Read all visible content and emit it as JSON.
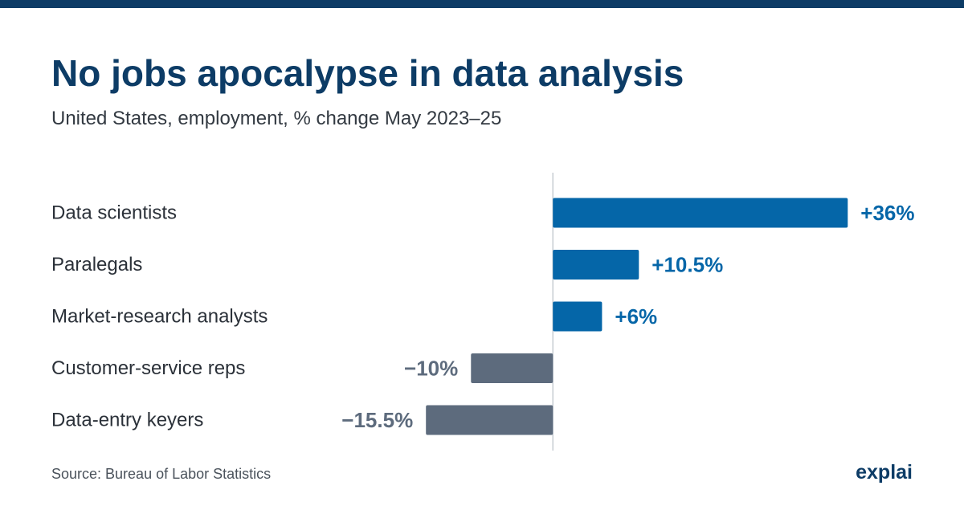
{
  "colors": {
    "accent": "#0566a8",
    "negative": "#5d6b7d",
    "title": "#0d3c66",
    "axis": "#c8cdd3",
    "brand": "#0d3c66"
  },
  "header": {
    "title": "No jobs apocalypse in data analysis",
    "subtitle": "United States, employment, % change May 2023–25"
  },
  "footer": {
    "source": "Source: Bureau of Labor Statistics",
    "brand": "explai"
  },
  "chart_data": {
    "type": "bar",
    "orientation": "horizontal",
    "categories": [
      "Data scientists",
      "Paralegals",
      "Market-research analysts",
      "Customer-service reps",
      "Data-entry keyers"
    ],
    "values": [
      36,
      10.5,
      6,
      -10,
      -15.5
    ],
    "data_labels": [
      "+36%",
      "+10.5%",
      "+6%",
      "−10%",
      "−15.5%"
    ],
    "title": "No jobs apocalypse in data analysis",
    "subtitle": "United States, employment, % change May 2023–25",
    "xlabel": "",
    "ylabel": "",
    "xlim": [
      -16.5,
      39.6
    ],
    "grid": false,
    "legend": "none"
  }
}
